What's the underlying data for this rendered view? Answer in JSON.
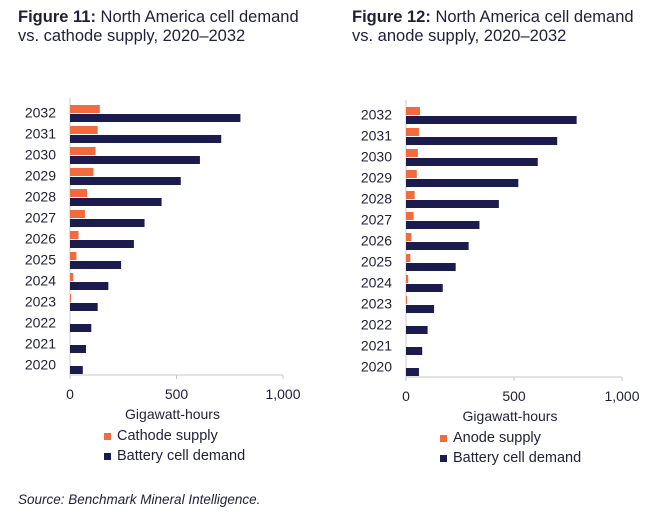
{
  "colors": {
    "supply": "#f26a3d",
    "demand": "#1b1b4d",
    "axis": "#c8c8c8"
  },
  "source": "Source: Benchmark Mineral Intelligence.",
  "chart_data": [
    {
      "type": "bar",
      "orientation": "horizontal",
      "title_prefix": "Figure 11:",
      "title": "North America cell demand vs. cathode supply, 2020–2032",
      "categories": [
        "2032",
        "2031",
        "2030",
        "2029",
        "2028",
        "2027",
        "2026",
        "2025",
        "2024",
        "2023",
        "2022",
        "2021",
        "2020"
      ],
      "series": [
        {
          "name": "Cathode supply",
          "values": [
            140,
            130,
            120,
            110,
            80,
            70,
            40,
            30,
            15,
            5,
            0,
            0,
            0
          ]
        },
        {
          "name": "Battery cell demand",
          "values": [
            800,
            710,
            610,
            520,
            430,
            350,
            300,
            240,
            180,
            130,
            100,
            75,
            60
          ]
        }
      ],
      "xlabel": "Gigawatt-hours",
      "xticks": [
        "0",
        "500",
        "1,000"
      ],
      "xlim": [
        0,
        1000
      ],
      "legend_position": "bottom",
      "grid": false
    },
    {
      "type": "bar",
      "orientation": "horizontal",
      "title_prefix": "Figure 12:",
      "title": "North America cell demand vs. anode supply, 2020–2032",
      "categories": [
        "2032",
        "2031",
        "2030",
        "2029",
        "2028",
        "2027",
        "2026",
        "2025",
        "2024",
        "2023",
        "2022",
        "2021",
        "2020"
      ],
      "series": [
        {
          "name": "Anode supply",
          "values": [
            65,
            60,
            55,
            50,
            40,
            35,
            25,
            20,
            10,
            5,
            0,
            0,
            0
          ]
        },
        {
          "name": "Battery cell demand",
          "values": [
            790,
            700,
            610,
            520,
            430,
            340,
            290,
            230,
            170,
            130,
            100,
            75,
            60
          ]
        }
      ],
      "xlabel": "Gigawatt-hours",
      "xticks": [
        "0",
        "500",
        "1,000"
      ],
      "xlim": [
        0,
        1000
      ],
      "legend_position": "bottom",
      "grid": false
    }
  ]
}
